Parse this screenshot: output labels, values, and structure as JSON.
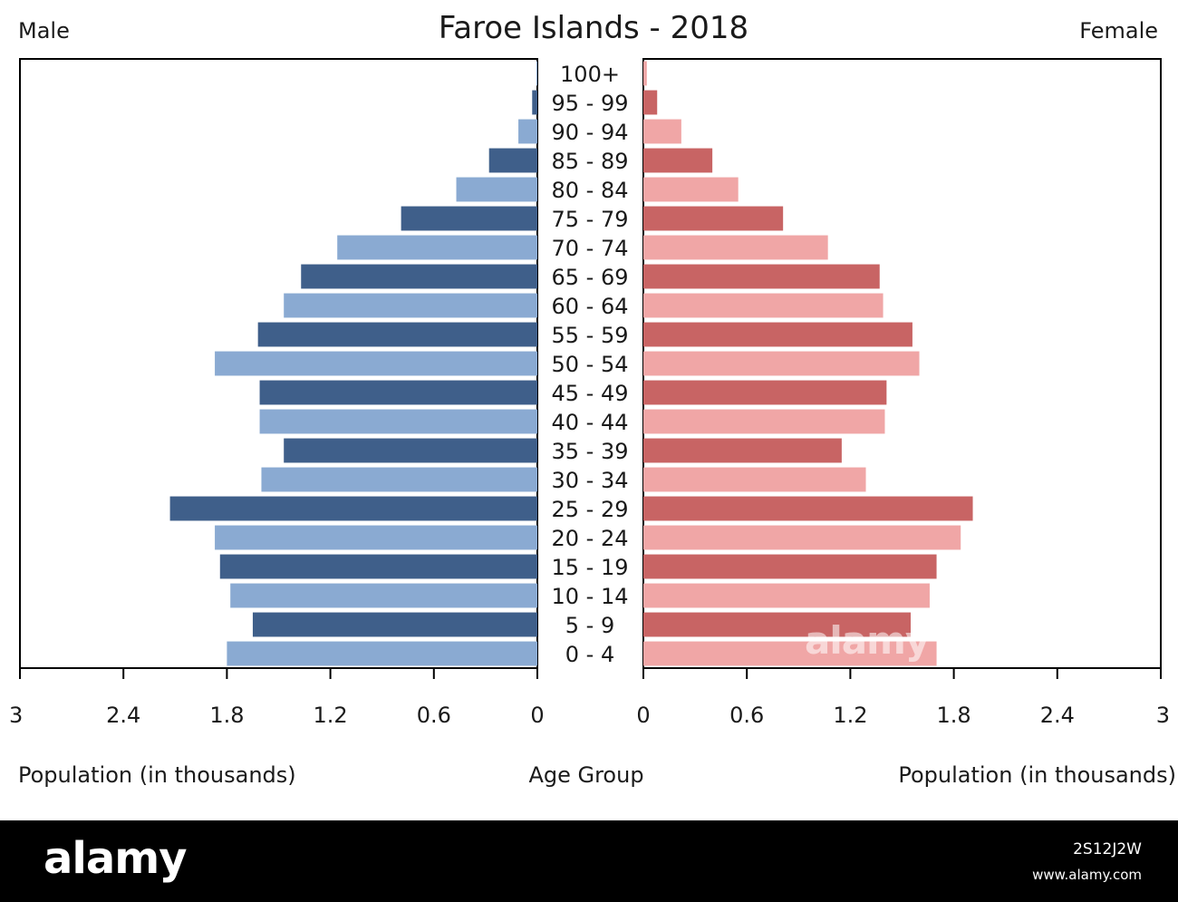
{
  "chart_data": {
    "type": "bar",
    "title": "Faroe Islands - 2018",
    "left_label": "Male",
    "right_label": "Female",
    "xlabel_left": "Population (in thousands)",
    "xlabel_center": "Age Group",
    "xlabel_right": "Population (in thousands)",
    "xlim": [
      0,
      3
    ],
    "ticks": [
      0,
      0.6,
      1.2,
      1.8,
      2.4,
      3
    ],
    "tick_labels": [
      "0",
      "0.6",
      "1.2",
      "1.8",
      "2.4",
      "3"
    ],
    "categories": [
      "100+",
      "95 - 99",
      "90 - 94",
      "85 - 89",
      "80 - 84",
      "75 - 79",
      "70 - 74",
      "65 - 69",
      "60 - 64",
      "55 - 59",
      "50 - 54",
      "45 - 49",
      "40 - 44",
      "35 - 39",
      "30 - 34",
      "25 - 29",
      "20 - 24",
      "15 - 19",
      "10 - 14",
      "5 - 9",
      "0 - 4"
    ],
    "series": [
      {
        "name": "Male",
        "values": [
          0.005,
          0.03,
          0.11,
          0.28,
          0.47,
          0.79,
          1.16,
          1.37,
          1.47,
          1.62,
          1.87,
          1.61,
          1.61,
          1.47,
          1.6,
          2.13,
          1.87,
          1.84,
          1.78,
          1.65,
          1.8
        ],
        "colors": [
          "#8aaad2",
          "#3f5f8a"
        ]
      },
      {
        "name": "Female",
        "values": [
          0.02,
          0.08,
          0.22,
          0.4,
          0.55,
          0.81,
          1.07,
          1.37,
          1.39,
          1.56,
          1.6,
          1.41,
          1.4,
          1.15,
          1.29,
          1.91,
          1.84,
          1.7,
          1.66,
          1.55,
          1.7
        ],
        "colors": [
          "#f0a6a6",
          "#c86464"
        ]
      }
    ],
    "grid": false,
    "legend": "none"
  },
  "watermark": {
    "text": "alamy"
  },
  "footer": {
    "logo": "alamy",
    "image_id": "2S12J2W",
    "url": "www.alamy.com"
  }
}
